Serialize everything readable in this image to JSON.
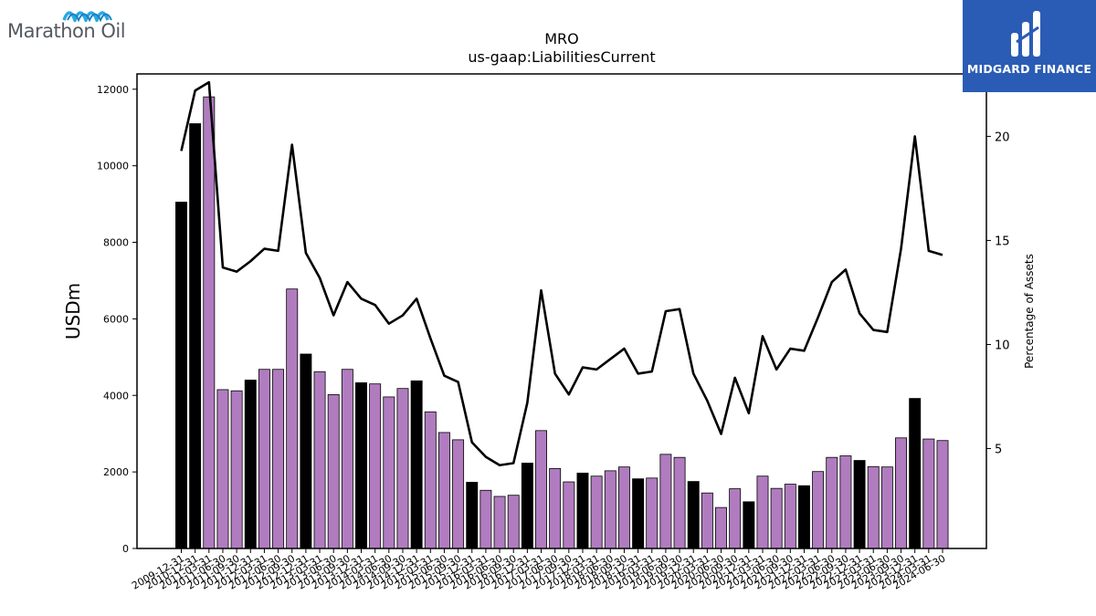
{
  "brand": {
    "company_logo_text": "Marathon Oil",
    "publisher_logo_text": "MIDGARD FINANCE"
  },
  "chart_data": {
    "type": "bar",
    "title": "MRO",
    "subtitle": "us-gaap:LiabilitiesCurrent",
    "ylabel": "USDm",
    "y2label": "Percentage of Assets",
    "ylim": [
      0,
      12400
    ],
    "y2lim": [
      0.2,
      23.0
    ],
    "yticks": [
      0,
      2000,
      4000,
      6000,
      8000,
      10000,
      12000
    ],
    "y2ticks": [
      5,
      10,
      15,
      20
    ],
    "categories": [
      "2009-12-31",
      "2010-12-31",
      "2011-03-31",
      "2011-06-30",
      "2011-09-30",
      "2011-12-31",
      "2012-03-31",
      "2012-06-30",
      "2012-09-30",
      "2012-12-31",
      "2013-03-31",
      "2013-06-30",
      "2013-09-30",
      "2013-12-31",
      "2014-03-31",
      "2014-06-30",
      "2014-09-30",
      "2014-12-31",
      "2015-03-31",
      "2015-06-30",
      "2015-09-30",
      "2015-12-31",
      "2016-03-31",
      "2016-06-30",
      "2016-09-30",
      "2016-12-31",
      "2017-03-31",
      "2017-06-30",
      "2017-09-30",
      "2017-12-31",
      "2018-03-31",
      "2018-06-30",
      "2018-09-30",
      "2018-12-31",
      "2019-03-31",
      "2019-06-30",
      "2019-09-30",
      "2019-12-31",
      "2020-03-31",
      "2020-06-30",
      "2020-09-30",
      "2020-12-31",
      "2021-03-31",
      "2021-06-30",
      "2021-09-30",
      "2021-12-31",
      "2022-03-31",
      "2022-06-30",
      "2022-09-30",
      "2022-12-31",
      "2023-03-31",
      "2023-06-30",
      "2023-09-30",
      "2023-12-31",
      "2024-03-31",
      "2024-06-30"
    ],
    "values": [
      9050,
      11100,
      11800,
      4150,
      4120,
      4400,
      4680,
      4680,
      6780,
      5080,
      4620,
      4020,
      4680,
      4330,
      4300,
      3960,
      4180,
      4380,
      3570,
      3030,
      2840,
      1730,
      1520,
      1360,
      1390,
      2230,
      3080,
      2090,
      1740,
      1970,
      1890,
      2030,
      2130,
      1820,
      1840,
      2460,
      2380,
      1750,
      1450,
      1070,
      1560,
      1220,
      1890,
      1570,
      1680,
      1640,
      2010,
      2380,
      2420,
      2300,
      2140,
      2130,
      2890,
      3920,
      2860,
      2820
    ],
    "annual_flags": [
      true,
      true,
      false,
      false,
      false,
      true,
      false,
      false,
      false,
      true,
      false,
      false,
      false,
      true,
      false,
      false,
      false,
      true,
      false,
      false,
      false,
      true,
      false,
      false,
      false,
      true,
      false,
      false,
      false,
      true,
      false,
      false,
      false,
      true,
      false,
      false,
      false,
      true,
      false,
      false,
      false,
      true,
      false,
      false,
      false,
      true,
      false,
      false,
      false,
      true,
      false,
      false,
      false,
      true,
      false,
      false
    ],
    "series": [
      {
        "name": "",
        "axis": "right",
        "kind": "line",
        "values": [
          19.3,
          22.2,
          22.6,
          13.7,
          13.5,
          14.0,
          14.6,
          14.5,
          19.6,
          14.4,
          13.2,
          11.4,
          13.0,
          12.2,
          11.9,
          11.0,
          11.4,
          12.2,
          10.3,
          8.5,
          8.2,
          5.3,
          4.6,
          4.2,
          4.3,
          7.2,
          12.6,
          8.6,
          7.6,
          8.9,
          8.8,
          9.3,
          9.8,
          8.6,
          8.7,
          11.6,
          11.7,
          8.6,
          7.3,
          5.7,
          8.4,
          6.7,
          10.4,
          8.8,
          9.8,
          9.7,
          11.3,
          13.0,
          13.6,
          11.5,
          10.7,
          10.6,
          14.6,
          20.0,
          14.5,
          14.3
        ]
      }
    ],
    "colors": {
      "annual_bar": "#000000",
      "quarter_bar": "#b07cbf",
      "line": "#000000"
    },
    "grid": false,
    "legend": "none"
  }
}
